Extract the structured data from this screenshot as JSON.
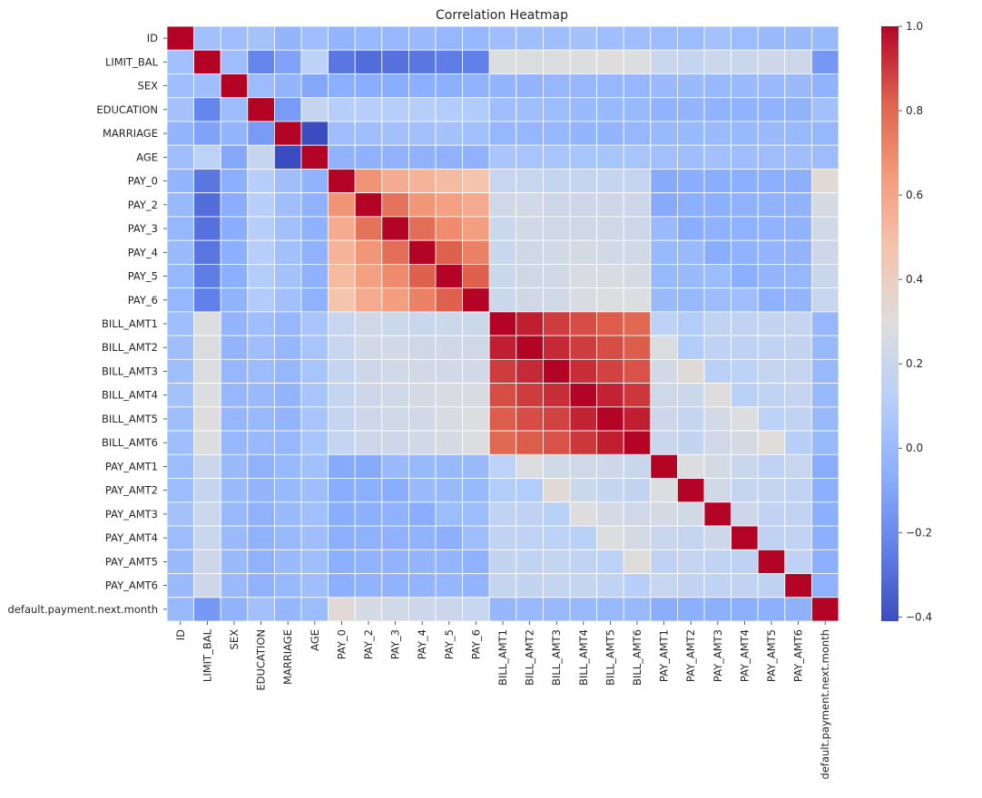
{
  "chart_data": {
    "type": "heatmap",
    "title": "Correlation Heatmap",
    "xlabel": "",
    "ylabel": "",
    "labels": [
      "ID",
      "LIMIT_BAL",
      "SEX",
      "EDUCATION",
      "MARRIAGE",
      "AGE",
      "PAY_0",
      "PAY_2",
      "PAY_3",
      "PAY_4",
      "PAY_5",
      "PAY_6",
      "BILL_AMT1",
      "BILL_AMT2",
      "BILL_AMT3",
      "BILL_AMT4",
      "BILL_AMT5",
      "BILL_AMT6",
      "PAY_AMT1",
      "PAY_AMT2",
      "PAY_AMT3",
      "PAY_AMT4",
      "PAY_AMT5",
      "PAY_AMT6",
      "default.payment.next.month"
    ],
    "colormap": "coolwarm",
    "vmin": -0.41,
    "vmax": 1.0,
    "colorbar_ticks": [
      "1.0",
      "0.8",
      "0.6",
      "0.4",
      "0.2",
      "0.0",
      "−0.2",
      "−0.4"
    ],
    "grid": "white lines between cells",
    "matrix": [
      [
        1.0,
        0.03,
        0.02,
        0.04,
        -0.03,
        0.02,
        -0.03,
        -0.01,
        -0.02,
        -0.0,
        -0.02,
        -0.02,
        0.02,
        0.02,
        0.02,
        0.04,
        0.02,
        0.02,
        0.01,
        0.01,
        0.04,
        0.01,
        0.0,
        0.0,
        -0.01
      ],
      [
        0.03,
        1.0,
        0.02,
        -0.22,
        -0.11,
        0.14,
        -0.27,
        -0.3,
        -0.29,
        -0.27,
        -0.25,
        -0.24,
        0.29,
        0.28,
        0.28,
        0.29,
        0.3,
        0.29,
        0.2,
        0.18,
        0.21,
        0.2,
        0.22,
        0.22,
        -0.15
      ],
      [
        0.02,
        0.02,
        1.0,
        0.01,
        -0.03,
        -0.09,
        -0.06,
        -0.07,
        -0.07,
        -0.06,
        -0.06,
        -0.04,
        -0.03,
        -0.03,
        -0.02,
        -0.02,
        -0.02,
        -0.02,
        -0.0,
        -0.0,
        -0.01,
        -0.0,
        -0.0,
        -0.0,
        -0.04
      ],
      [
        0.04,
        -0.22,
        0.01,
        1.0,
        -0.14,
        0.18,
        0.11,
        0.12,
        0.11,
        0.11,
        0.1,
        0.09,
        0.02,
        0.02,
        0.01,
        -0.0,
        -0.01,
        -0.01,
        -0.04,
        -0.03,
        -0.04,
        -0.04,
        -0.04,
        -0.04,
        0.03
      ],
      [
        -0.03,
        -0.11,
        -0.03,
        -0.14,
        1.0,
        -0.41,
        0.02,
        0.02,
        0.03,
        0.03,
        0.04,
        0.03,
        -0.02,
        -0.02,
        -0.02,
        -0.03,
        -0.03,
        -0.02,
        -0.01,
        -0.01,
        -0.0,
        -0.01,
        -0.0,
        -0.01,
        -0.02
      ],
      [
        0.02,
        0.14,
        -0.09,
        0.18,
        -0.41,
        1.0,
        -0.04,
        -0.05,
        -0.05,
        -0.05,
        -0.05,
        -0.05,
        0.06,
        0.05,
        0.05,
        0.05,
        0.05,
        0.05,
        0.03,
        0.02,
        0.03,
        0.02,
        0.02,
        0.02,
        0.01
      ],
      [
        -0.03,
        -0.27,
        -0.06,
        0.11,
        0.02,
        -0.04,
        1.0,
        0.67,
        0.57,
        0.54,
        0.51,
        0.47,
        0.19,
        0.19,
        0.18,
        0.18,
        0.18,
        0.18,
        -0.08,
        -0.07,
        -0.07,
        -0.06,
        -0.06,
        -0.06,
        0.32
      ],
      [
        -0.01,
        -0.3,
        -0.07,
        0.12,
        0.02,
        -0.05,
        0.67,
        1.0,
        0.77,
        0.66,
        0.62,
        0.58,
        0.23,
        0.24,
        0.22,
        0.22,
        0.22,
        0.22,
        -0.08,
        -0.06,
        -0.06,
        -0.05,
        -0.04,
        -0.04,
        0.26
      ],
      [
        -0.02,
        -0.29,
        -0.07,
        0.11,
        0.03,
        -0.05,
        0.57,
        0.77,
        1.0,
        0.78,
        0.69,
        0.63,
        0.21,
        0.24,
        0.23,
        0.23,
        0.23,
        0.22,
        0.0,
        -0.07,
        -0.05,
        -0.05,
        -0.04,
        -0.04,
        0.24
      ],
      [
        -0.0,
        -0.27,
        -0.06,
        0.11,
        0.03,
        -0.05,
        0.54,
        0.66,
        0.78,
        1.0,
        0.82,
        0.72,
        0.2,
        0.23,
        0.24,
        0.25,
        0.24,
        0.24,
        -0.01,
        -0.0,
        -0.07,
        -0.04,
        -0.03,
        -0.03,
        0.22
      ],
      [
        -0.02,
        -0.25,
        -0.06,
        0.1,
        0.04,
        -0.05,
        0.51,
        0.62,
        0.69,
        0.82,
        1.0,
        0.82,
        0.21,
        0.23,
        0.24,
        0.27,
        0.27,
        0.26,
        -0.01,
        -0.0,
        0.01,
        -0.06,
        -0.03,
        -0.02,
        0.2
      ],
      [
        -0.02,
        -0.24,
        -0.04,
        0.09,
        0.03,
        -0.05,
        0.47,
        0.58,
        0.63,
        0.72,
        0.82,
        1.0,
        0.21,
        0.23,
        0.24,
        0.27,
        0.29,
        0.29,
        -0.0,
        -0.01,
        0.01,
        0.02,
        -0.05,
        -0.03,
        0.19
      ],
      [
        0.02,
        0.29,
        -0.03,
        0.02,
        -0.02,
        0.06,
        0.19,
        0.23,
        0.21,
        0.2,
        0.21,
        0.21,
        1.0,
        0.95,
        0.89,
        0.86,
        0.83,
        0.8,
        0.14,
        0.1,
        0.16,
        0.16,
        0.17,
        0.18,
        -0.02
      ],
      [
        0.02,
        0.28,
        -0.03,
        0.02,
        -0.02,
        0.05,
        0.19,
        0.24,
        0.24,
        0.23,
        0.23,
        0.23,
        0.95,
        1.0,
        0.93,
        0.89,
        0.86,
        0.83,
        0.28,
        0.1,
        0.15,
        0.15,
        0.16,
        0.17,
        -0.01
      ],
      [
        0.02,
        0.28,
        -0.02,
        0.01,
        -0.02,
        0.05,
        0.18,
        0.22,
        0.23,
        0.24,
        0.24,
        0.24,
        0.89,
        0.93,
        1.0,
        0.92,
        0.88,
        0.85,
        0.24,
        0.32,
        0.13,
        0.14,
        0.18,
        0.18,
        -0.01
      ],
      [
        0.04,
        0.29,
        -0.02,
        -0.0,
        -0.03,
        0.05,
        0.18,
        0.22,
        0.23,
        0.25,
        0.27,
        0.27,
        0.86,
        0.89,
        0.92,
        1.0,
        0.94,
        0.9,
        0.23,
        0.21,
        0.3,
        0.13,
        0.16,
        0.18,
        -0.01
      ],
      [
        0.02,
        0.3,
        -0.02,
        -0.01,
        -0.03,
        0.05,
        0.18,
        0.22,
        0.23,
        0.24,
        0.27,
        0.29,
        0.83,
        0.86,
        0.88,
        0.94,
        1.0,
        0.95,
        0.22,
        0.18,
        0.25,
        0.29,
        0.14,
        0.16,
        -0.01
      ],
      [
        0.02,
        0.29,
        -0.02,
        -0.01,
        -0.02,
        0.05,
        0.18,
        0.22,
        0.22,
        0.24,
        0.26,
        0.29,
        0.8,
        0.83,
        0.85,
        0.9,
        0.95,
        1.0,
        0.2,
        0.17,
        0.23,
        0.25,
        0.31,
        0.12,
        -0.01
      ],
      [
        0.01,
        0.2,
        -0.0,
        -0.04,
        -0.01,
        0.03,
        -0.08,
        -0.08,
        0.0,
        -0.01,
        -0.01,
        -0.0,
        0.14,
        0.28,
        0.24,
        0.23,
        0.22,
        0.2,
        1.0,
        0.29,
        0.25,
        0.2,
        0.15,
        0.19,
        -0.07
      ],
      [
        0.01,
        0.18,
        -0.0,
        -0.03,
        -0.01,
        0.02,
        -0.07,
        -0.06,
        -0.07,
        -0.0,
        -0.0,
        -0.01,
        0.1,
        0.1,
        0.32,
        0.21,
        0.18,
        0.17,
        0.29,
        1.0,
        0.24,
        0.18,
        0.18,
        0.16,
        -0.06
      ],
      [
        0.04,
        0.21,
        -0.01,
        -0.04,
        -0.0,
        0.03,
        -0.07,
        -0.06,
        -0.05,
        -0.07,
        0.01,
        0.01,
        0.16,
        0.15,
        0.13,
        0.3,
        0.25,
        0.23,
        0.25,
        0.24,
        1.0,
        0.22,
        0.16,
        0.16,
        -0.06
      ],
      [
        0.01,
        0.2,
        -0.0,
        -0.04,
        -0.01,
        0.02,
        -0.06,
        -0.05,
        -0.05,
        -0.04,
        -0.06,
        0.02,
        0.16,
        0.15,
        0.14,
        0.13,
        0.29,
        0.25,
        0.2,
        0.18,
        0.22,
        1.0,
        0.15,
        0.16,
        -0.06
      ],
      [
        0.0,
        0.22,
        -0.0,
        -0.04,
        -0.0,
        0.02,
        -0.06,
        -0.04,
        -0.04,
        -0.03,
        -0.03,
        -0.05,
        0.17,
        0.16,
        0.18,
        0.16,
        0.14,
        0.31,
        0.15,
        0.18,
        0.16,
        0.15,
        1.0,
        0.15,
        -0.06
      ],
      [
        0.0,
        0.22,
        -0.0,
        -0.04,
        -0.01,
        0.02,
        -0.06,
        -0.04,
        -0.04,
        -0.03,
        -0.02,
        -0.03,
        0.18,
        0.17,
        0.18,
        0.18,
        0.16,
        0.12,
        0.19,
        0.16,
        0.16,
        0.16,
        0.15,
        1.0,
        -0.05
      ],
      [
        -0.01,
        -0.15,
        -0.04,
        0.03,
        -0.02,
        0.01,
        0.32,
        0.26,
        0.24,
        0.22,
        0.2,
        0.19,
        -0.02,
        -0.01,
        -0.01,
        -0.01,
        -0.01,
        -0.01,
        -0.07,
        -0.06,
        -0.06,
        -0.06,
        -0.06,
        -0.05,
        1.0
      ]
    ]
  }
}
